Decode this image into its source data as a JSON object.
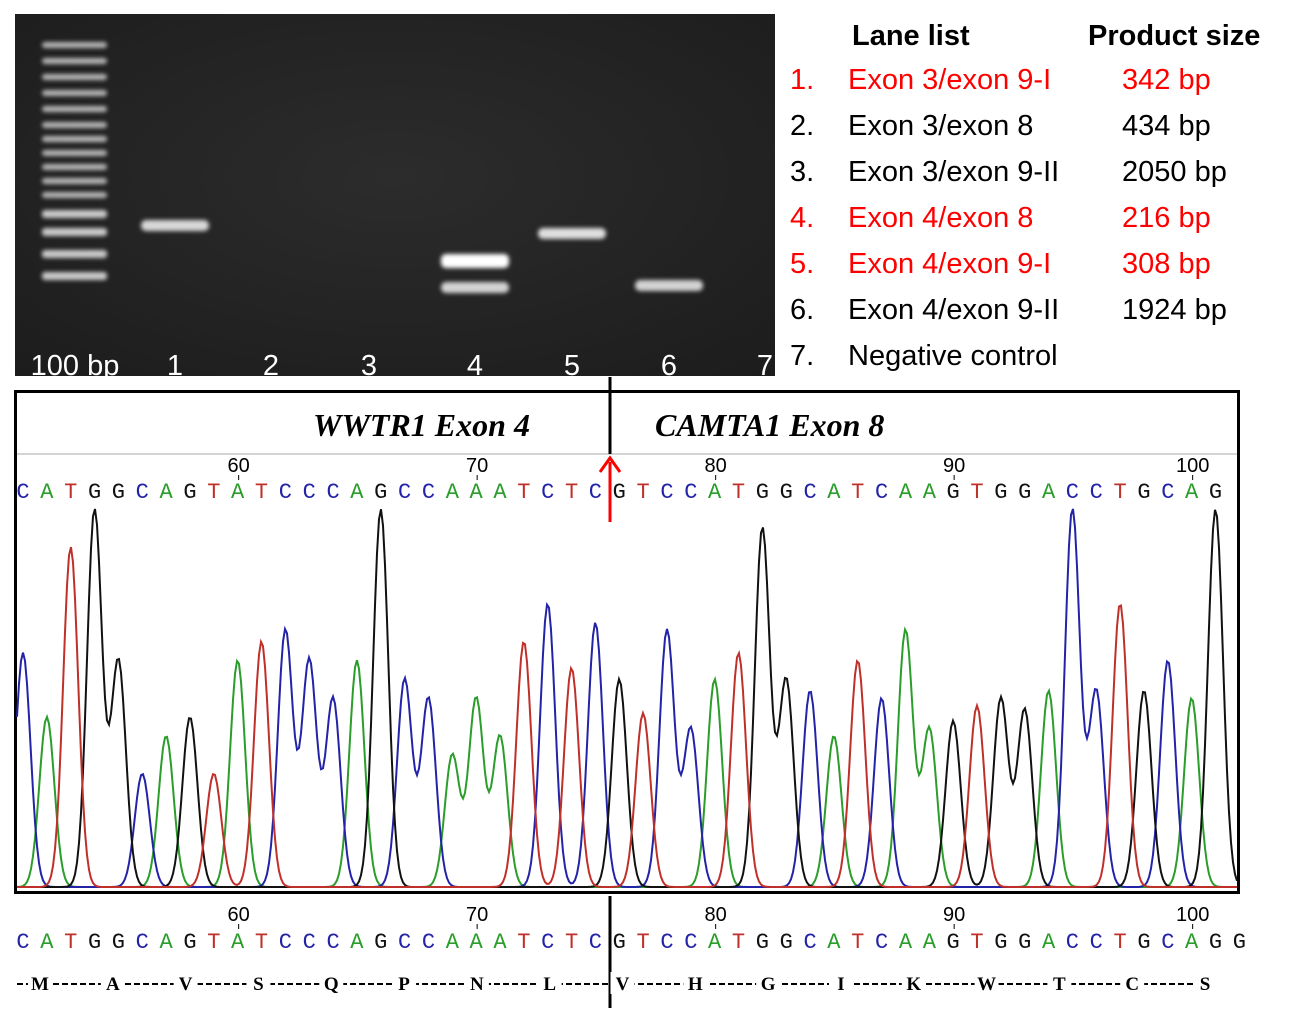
{
  "colors": {
    "A": "#2a9d2a",
    "C": "#2323a8",
    "G": "#111111",
    "T": "#c0302a",
    "highlight": "#ff0000",
    "gel_bg": "#1c1c1c"
  },
  "gel": {
    "ladder_label": "100 bp",
    "lanes": [
      {
        "label": "1",
        "bands": [
          0.82
        ]
      },
      {
        "label": "2",
        "bands": []
      },
      {
        "label": "3",
        "bands": []
      },
      {
        "label": "4",
        "bands": [
          1.0,
          0.8
        ]
      },
      {
        "label": "5",
        "bands": [
          0.85
        ]
      },
      {
        "label": "6",
        "bands": [
          0.8
        ]
      },
      {
        "label": "7",
        "bands": []
      }
    ]
  },
  "lane_list": {
    "header_lane": "Lane list",
    "header_size": "Product size",
    "rows": [
      {
        "num": "1.",
        "name": "Exon 3/exon 9-I",
        "size": "342 bp",
        "highlight": true
      },
      {
        "num": "2.",
        "name": "Exon 3/exon 8",
        "size": "434 bp",
        "highlight": false
      },
      {
        "num": "3.",
        "name": "Exon 3/exon 9-II",
        "size": "2050 bp",
        "highlight": false
      },
      {
        "num": "4.",
        "name": "Exon 4/exon 8",
        "size": "216 bp",
        "highlight": true
      },
      {
        "num": "5.",
        "name": "Exon 4/exon 9-I",
        "size": "308 bp",
        "highlight": true
      },
      {
        "num": "6.",
        "name": "Exon 4/exon 9-II",
        "size": "1924 bp",
        "highlight": false
      },
      {
        "num": "7.",
        "name": "Negative control",
        "size": "",
        "highlight": false
      }
    ]
  },
  "chromatogram": {
    "left_region": "WWTR1 Exon 4",
    "right_region": "CAMTA1 Exon 8",
    "sequence_top": "CATGGCAGTATCCCAGCCAAATCTCGTCCATGGCATCAAGTGGACCTGCAG",
    "sequence_bottom": "CATGGCAGTATCCCAGCCAAATCTCGTCCATGGCATCAAGTGGACCTGCAGG",
    "positions": [
      "60",
      "70",
      "80",
      "90",
      "100"
    ],
    "peak_heights": [
      0.62,
      0.45,
      0.9,
      1.0,
      0.6,
      0.3,
      0.4,
      0.45,
      0.3,
      0.6,
      0.65,
      0.68,
      0.6,
      0.5,
      0.6,
      1.0,
      0.55,
      0.5,
      0.35,
      0.5,
      0.4,
      0.65,
      0.75,
      0.58,
      0.7,
      0.55,
      0.46,
      0.68,
      0.42,
      0.55,
      0.62,
      0.95,
      0.55,
      0.52,
      0.4,
      0.6,
      0.5,
      0.68,
      0.42,
      0.44,
      0.48,
      0.5,
      0.47,
      0.52,
      1.0,
      0.52,
      0.75,
      0.52,
      0.6,
      0.5,
      1.0
    ],
    "amino_acids": [
      "M",
      "A",
      "V",
      "S",
      "Q",
      "P",
      "N",
      "L",
      "V",
      "H",
      "G",
      "I",
      "K",
      "W",
      "T",
      "C",
      "S"
    ]
  }
}
